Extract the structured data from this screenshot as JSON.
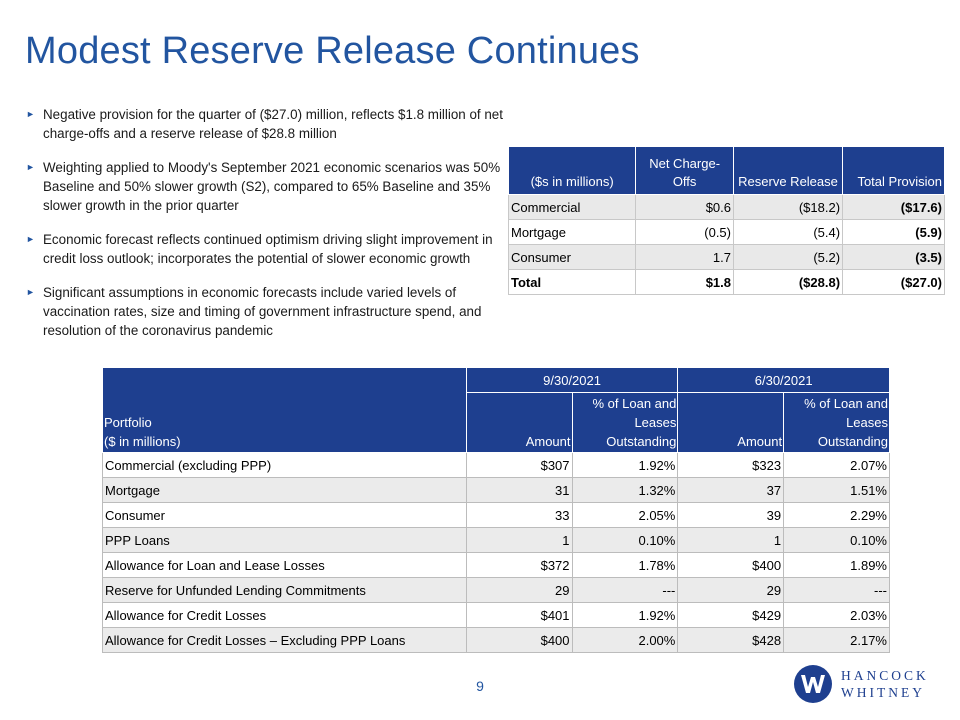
{
  "title": "Modest Reserve Release Continues",
  "bullets": [
    "Negative provision for the quarter of ($27.0) million, reflects $1.8 million of net charge-offs and a reserve  release of $28.8 million",
    "Weighting applied to Moody's September 2021 economic scenarios was 50% Baseline and 50% slower growth (S2), compared to 65% Baseline and 35% slower growth in the prior quarter",
    "Economic forecast reflects continued optimism driving slight improvement in credit loss outlook; incorporates the potential of slower economic growth",
    "Significant assumptions in economic forecasts include varied levels of vaccination rates, size and timing of government infrastructure spend, and resolution of the coronavirus pandemic"
  ],
  "provision_table": {
    "headers": [
      "($s in millions)",
      "Net Charge-Offs",
      "Reserve Release",
      "Total Provision"
    ],
    "rows": [
      [
        "Commercial",
        "$0.6",
        "($18.2)",
        "($17.6)"
      ],
      [
        "Mortgage",
        "(0.5)",
        "(5.4)",
        "(5.9)"
      ],
      [
        "Consumer",
        "1.7",
        "(5.2)",
        "(3.5)"
      ],
      [
        "Total",
        "$1.8",
        "($28.8)",
        "($27.0)"
      ]
    ]
  },
  "allowance_table": {
    "portfolio_label": "Portfolio",
    "units_label": "($ in millions)",
    "dates": [
      "9/30/2021",
      "6/30/2021"
    ],
    "col_amount": "Amount",
    "col_pct": "% of Loan and Leases Outstanding",
    "rows": [
      [
        "Commercial (excluding PPP)",
        "$307",
        "1.92%",
        "$323",
        "2.07%"
      ],
      [
        "Mortgage",
        "31",
        "1.32%",
        "37",
        "1.51%"
      ],
      [
        "Consumer",
        "33",
        "2.05%",
        "39",
        "2.29%"
      ],
      [
        "PPP Loans",
        "1",
        "0.10%",
        "1",
        "0.10%"
      ],
      [
        "Allowance for Loan and Lease Losses",
        "$372",
        "1.78%",
        "$400",
        "1.89%"
      ],
      [
        "Reserve for Unfunded Lending Commitments",
        "29",
        "---",
        "29",
        "---"
      ],
      [
        "Allowance for Credit Losses",
        "$401",
        "1.92%",
        "$429",
        "2.03%"
      ],
      [
        "Allowance for Credit Losses – Excluding PPP Loans",
        "$400",
        "2.00%",
        "$428",
        "2.17%"
      ]
    ]
  },
  "page_number": "9",
  "logo": {
    "line1": "HANCOCK",
    "line2": "WHITNEY",
    "icon": "hancock-whitney-w-logo"
  },
  "colors": {
    "accent": "#2255a0",
    "header_bg": "#1e3f8f"
  }
}
